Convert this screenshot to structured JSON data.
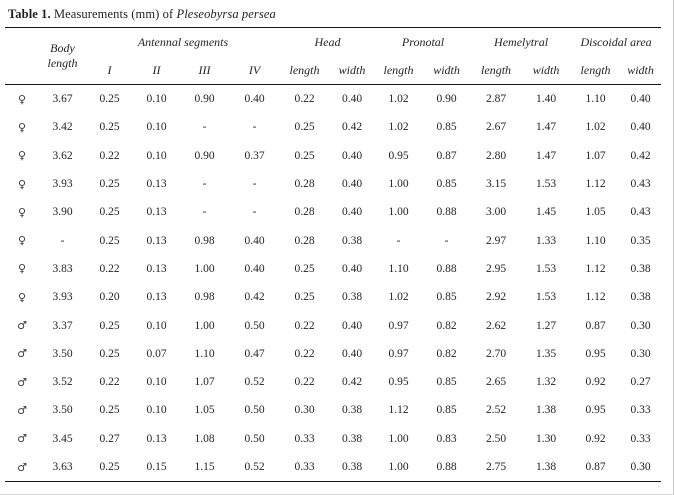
{
  "title": {
    "prefix": "Table 1.",
    "text": " Measurements (mm) of ",
    "species": "Pleseobyrsa persea"
  },
  "table": {
    "body_length": {
      "line1": "Body",
      "line2": "length"
    },
    "groups": [
      {
        "label": "Antennal segments",
        "subcols": [
          "I",
          "II",
          "III",
          "IV"
        ]
      },
      {
        "label": "Head",
        "subcols": [
          "length",
          "width"
        ]
      },
      {
        "label": "Pronotal",
        "subcols": [
          "length",
          "width"
        ]
      },
      {
        "label": "Hemelytral",
        "subcols": [
          "length",
          "width"
        ]
      },
      {
        "label": "Discoidal area",
        "subcols": [
          "length",
          "width"
        ]
      }
    ],
    "rows": [
      {
        "sex": "♀",
        "values": [
          "3.67",
          "0.25",
          "0.10",
          "0.90",
          "0.40",
          "0.22",
          "0.40",
          "1.02",
          "0.90",
          "2.87",
          "1.40",
          "1.10",
          "0.40"
        ]
      },
      {
        "sex": "♀",
        "values": [
          "3.42",
          "0.25",
          "0.10",
          "-",
          "-",
          "0.25",
          "0.42",
          "1.02",
          "0.85",
          "2.67",
          "1.47",
          "1.02",
          "0.40"
        ]
      },
      {
        "sex": "♀",
        "values": [
          "3.62",
          "0.22",
          "0.10",
          "0.90",
          "0.37",
          "0.25",
          "0.40",
          "0.95",
          "0.87",
          "2.80",
          "1.47",
          "1.07",
          "0.42"
        ]
      },
      {
        "sex": "♀",
        "values": [
          "3.93",
          "0.25",
          "0.13",
          "-",
          "-",
          "0.28",
          "0.40",
          "1.00",
          "0.85",
          "3.15",
          "1.53",
          "1.12",
          "0.43"
        ]
      },
      {
        "sex": "♀",
        "values": [
          "3.90",
          "0.25",
          "0.13",
          "-",
          "-",
          "0.28",
          "0.40",
          "1.00",
          "0.88",
          "3.00",
          "1.45",
          "1.05",
          "0.43"
        ]
      },
      {
        "sex": "♀",
        "values": [
          "-",
          "0.25",
          "0.13",
          "0.98",
          "0.40",
          "0.28",
          "0.38",
          "-",
          "-",
          "2.97",
          "1.33",
          "1.10",
          "0.35"
        ]
      },
      {
        "sex": "♀",
        "values": [
          "3.83",
          "0.22",
          "0.13",
          "1.00",
          "0.40",
          "0.25",
          "0.40",
          "1.10",
          "0.88",
          "2.95",
          "1.53",
          "1.12",
          "0.38"
        ]
      },
      {
        "sex": "♀",
        "values": [
          "3.93",
          "0.20",
          "0.13",
          "0.98",
          "0.42",
          "0.25",
          "0.38",
          "1.02",
          "0.85",
          "2.92",
          "1.53",
          "1.12",
          "0.38"
        ]
      },
      {
        "sex": "♂",
        "values": [
          "3.37",
          "0.25",
          "0.10",
          "1.00",
          "0.50",
          "0.22",
          "0.40",
          "0.97",
          "0.82",
          "2.62",
          "1.27",
          "0.87",
          "0.30"
        ]
      },
      {
        "sex": "♂",
        "values": [
          "3.50",
          "0.25",
          "0.07",
          "1.10",
          "0.47",
          "0.22",
          "0.40",
          "0.97",
          "0.82",
          "2.70",
          "1.35",
          "0.95",
          "0.30"
        ]
      },
      {
        "sex": "♂",
        "values": [
          "3.52",
          "0.22",
          "0.10",
          "1.07",
          "0.52",
          "0.22",
          "0.42",
          "0.95",
          "0.85",
          "2.65",
          "1.32",
          "0.92",
          "0.27"
        ]
      },
      {
        "sex": "♂",
        "values": [
          "3.50",
          "0.25",
          "0.10",
          "1.05",
          "0.50",
          "0.30",
          "0.38",
          "1.12",
          "0.85",
          "2.52",
          "1.38",
          "0.95",
          "0.33"
        ]
      },
      {
        "sex": "♂",
        "values": [
          "3.45",
          "0.27",
          "0.13",
          "1.08",
          "0.50",
          "0.33",
          "0.38",
          "1.00",
          "0.83",
          "2.50",
          "1.30",
          "0.92",
          "0.33"
        ]
      },
      {
        "sex": "♂",
        "values": [
          "3.63",
          "0.25",
          "0.15",
          "1.15",
          "0.52",
          "0.33",
          "0.38",
          "1.00",
          "0.88",
          "2.75",
          "1.38",
          "0.87",
          "0.30"
        ]
      }
    ]
  }
}
